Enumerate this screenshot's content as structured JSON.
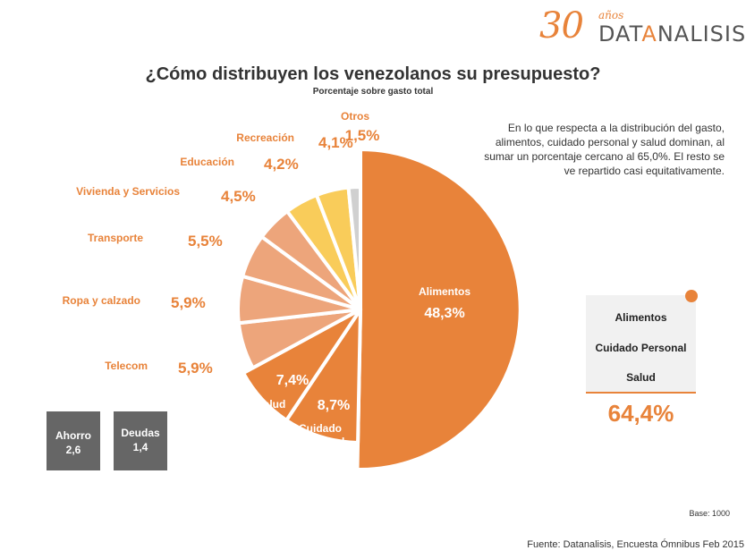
{
  "logo": {
    "number": "30",
    "years": "años",
    "brand_pre": "DAT",
    "brand_hl": "A",
    "brand_post": "NALISIS"
  },
  "title": "¿Cómo distribuyen los venezolanos su presupuesto?",
  "subtitle": "Porcentaje sobre gasto total",
  "note": "En lo que respecta a la distribución del gasto, alimentos, cuidado personal y salud dominan, al sumar un porcentaje cercano al 65,0%. El resto se ve repartido casi equitativamente.",
  "summary": {
    "items": [
      "Alimentos",
      "Cuidado Personal",
      "Salud"
    ],
    "total": "64,4%"
  },
  "side_boxes": [
    {
      "label": "Ahorro",
      "value": "2,6"
    },
    {
      "label": "Deudas",
      "value": "1,4"
    }
  ],
  "base_note": "Base: 1000",
  "source": "Fuente: Datanalisis, Encuesta Ómnibus Feb 2015",
  "colors": {
    "dark_orange": "#E8833A",
    "light_orange": "#EDA57B",
    "yellow": "#F9CC5A",
    "grey": "#D0D0D0",
    "accent": "#E8833A"
  },
  "chart_data": {
    "type": "pie",
    "title": "¿Cómo distribuyen los venezolanos su presupuesto?",
    "subtitle": "Porcentaje sobre gasto total",
    "start": "top",
    "direction": "clockwise",
    "slices": [
      {
        "label": "Alimentos",
        "value": 48.3,
        "display": "48,3%",
        "color": "#E8833A"
      },
      {
        "label": "Cuidado Personal",
        "value": 8.7,
        "display": "8,7%",
        "color": "#E8833A"
      },
      {
        "label": "Salud",
        "value": 7.4,
        "display": "7,4%",
        "color": "#E8833A"
      },
      {
        "label": "Telecom",
        "value": 5.9,
        "display": "5,9%",
        "color": "#EDA57B"
      },
      {
        "label": "Ropa y calzado",
        "value": 5.9,
        "display": "5,9%",
        "color": "#EDA57B"
      },
      {
        "label": "Transporte",
        "value": 5.5,
        "display": "5,5%",
        "color": "#EDA57B"
      },
      {
        "label": "Vivienda y Servicios",
        "value": 4.5,
        "display": "4,5%",
        "color": "#EDA57B"
      },
      {
        "label": "Educación",
        "value": 4.2,
        "display": "4,2%",
        "color": "#F9CC5A"
      },
      {
        "label": "Recreación",
        "value": 4.1,
        "display": "4,1%",
        "color": "#F9CC5A"
      },
      {
        "label": "Otros",
        "value": 1.5,
        "display": "1,5%",
        "color": "#D0D0D0"
      }
    ]
  }
}
